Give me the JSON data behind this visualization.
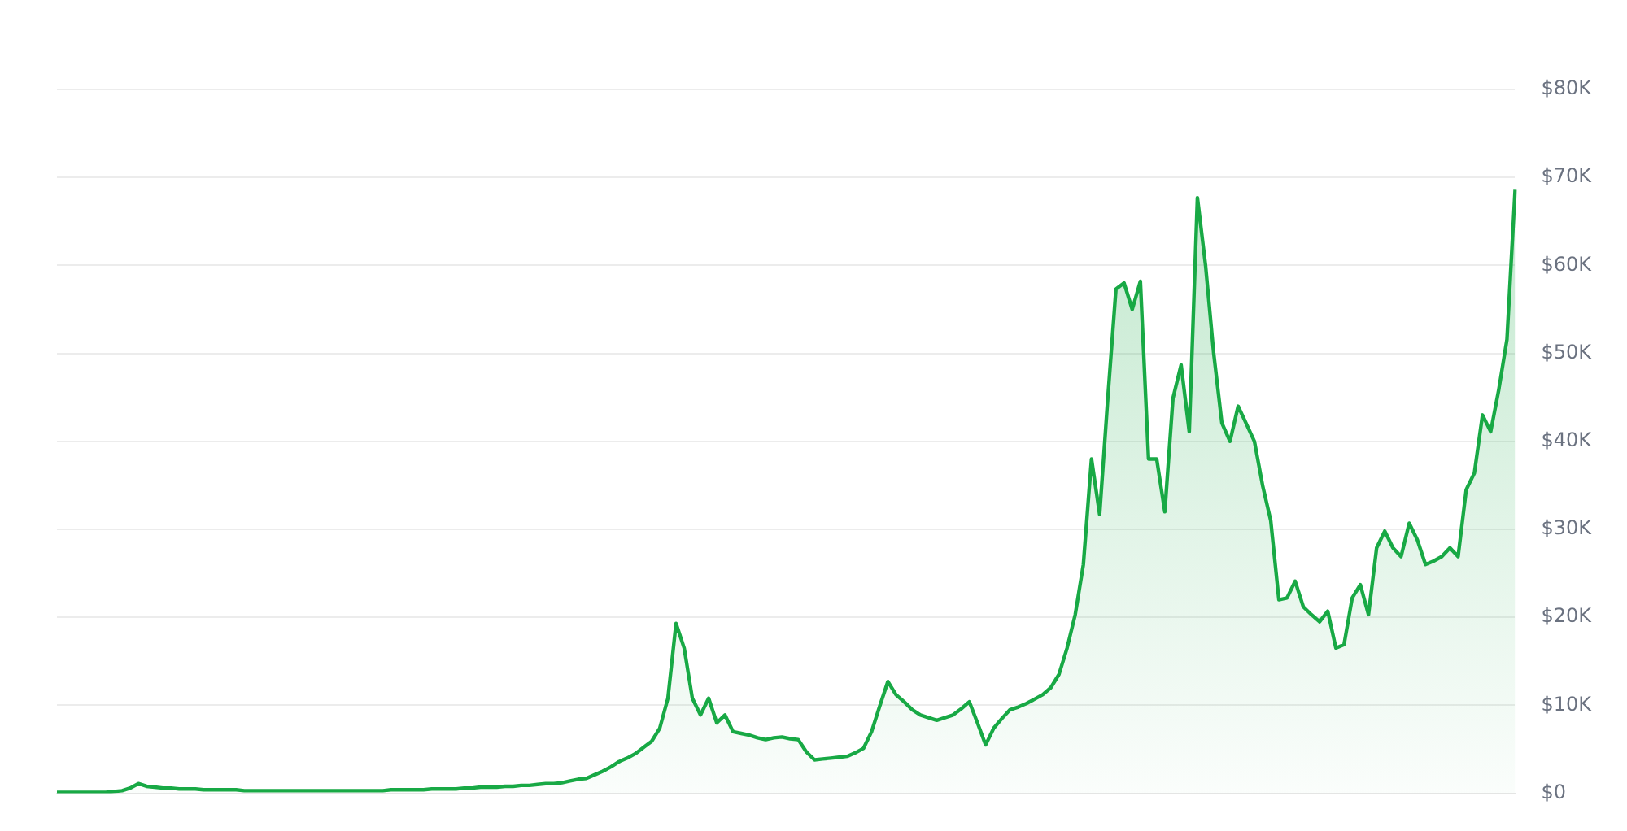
{
  "chart_data": {
    "type": "area",
    "categories": [
      null,
      null,
      null,
      null,
      null,
      null,
      null,
      null,
      null,
      null,
      null,
      null,
      null,
      null,
      null,
      null,
      null,
      null,
      null,
      null,
      null,
      null,
      null,
      null,
      null,
      null,
      null,
      null,
      null,
      null,
      null,
      null,
      null,
      null,
      null,
      null,
      null,
      null,
      null,
      null,
      null,
      null,
      null,
      null,
      null,
      null,
      null,
      null,
      null,
      null,
      null,
      null,
      null,
      null,
      null,
      null,
      null,
      null,
      null,
      null,
      null,
      null,
      null,
      null,
      null,
      null,
      null,
      null,
      null,
      null,
      null,
      null,
      null,
      null,
      null,
      null,
      null,
      null,
      null,
      null,
      null,
      null,
      null,
      null,
      null,
      null,
      null,
      null,
      null,
      null,
      null,
      null,
      null,
      null,
      null,
      null,
      null,
      null,
      null,
      null,
      null,
      null,
      null,
      null,
      null,
      null,
      null,
      null,
      null,
      null,
      null,
      null,
      null,
      null,
      null,
      null,
      null,
      null,
      null,
      null,
      null,
      null,
      null,
      null,
      null,
      null,
      null,
      null,
      null,
      null,
      null,
      null,
      null,
      null,
      null,
      null,
      null,
      null,
      null,
      null,
      null,
      null,
      null,
      null,
      null,
      null,
      null,
      null,
      null,
      null,
      null,
      null,
      null,
      null,
      null,
      null,
      null,
      null,
      null,
      null,
      null,
      null,
      null,
      null,
      null,
      null,
      null,
      null,
      null,
      null,
      null,
      null,
      null,
      null,
      null,
      null,
      null,
      null,
      null,
      null
    ],
    "series": [
      {
        "color": "#18a945",
        "values": [
          100,
          100,
          100,
          100,
          100,
          100,
          100,
          200,
          300,
          600,
          1100,
          800,
          700,
          600,
          600,
          500,
          500,
          500,
          400,
          400,
          400,
          400,
          400,
          300,
          300,
          300,
          300,
          300,
          300,
          300,
          300,
          300,
          300,
          300,
          300,
          300,
          300,
          300,
          300,
          300,
          300,
          400,
          400,
          400,
          400,
          400,
          500,
          500,
          500,
          500,
          600,
          600,
          700,
          700,
          700,
          800,
          800,
          900,
          900,
          1000,
          1100,
          1100,
          1200,
          1400,
          1600,
          1700,
          2100,
          2500,
          3000,
          3600,
          4000,
          4500,
          5200,
          5900,
          7400,
          10800,
          19300,
          16500,
          10800,
          8900,
          10800,
          8000,
          8900,
          7000,
          6800,
          6600,
          6300,
          6100,
          6300,
          6400,
          6200,
          6100,
          4700,
          3800,
          3900,
          4000,
          4100,
          4200,
          4600,
          5100,
          7000,
          9900,
          12700,
          11200,
          10400,
          9500,
          8900,
          8600,
          8300,
          8600,
          8900,
          9600,
          10400,
          8000,
          5500,
          7400,
          8500,
          9500,
          9800,
          10200,
          10700,
          11200,
          12000,
          13500,
          16500,
          20300,
          26000,
          38000,
          31700,
          44900,
          57300,
          58000,
          55000,
          58200,
          38000,
          38000,
          32000,
          44900,
          48700,
          41100,
          67700,
          60000,
          50000,
          42100,
          40000,
          44000,
          42000,
          40000,
          35000,
          31000,
          22000,
          22200,
          24100,
          21200,
          20300,
          19500,
          20700,
          16500,
          16900,
          22200,
          23700,
          20300,
          27900,
          29800,
          27900,
          26900,
          30700,
          28800,
          26000,
          26400,
          26900,
          27900,
          26900,
          34500,
          36400,
          43000,
          41100,
          45900,
          51600,
          68600
        ]
      }
    ],
    "ylim": [
      0,
      80000
    ],
    "yticks": [
      {
        "value": 0,
        "label": "$0"
      },
      {
        "value": 10000,
        "label": "$10K"
      },
      {
        "value": 20000,
        "label": "$20K"
      },
      {
        "value": 30000,
        "label": "$30K"
      },
      {
        "value": 40000,
        "label": "$40K"
      },
      {
        "value": 50000,
        "label": "$50K"
      },
      {
        "value": 60000,
        "label": "$60K"
      },
      {
        "value": 70000,
        "label": "$70K"
      },
      {
        "value": 80000,
        "label": "$80K"
      }
    ],
    "grid": "y",
    "legend": false,
    "marker": "none",
    "tick_labels": "y"
  }
}
